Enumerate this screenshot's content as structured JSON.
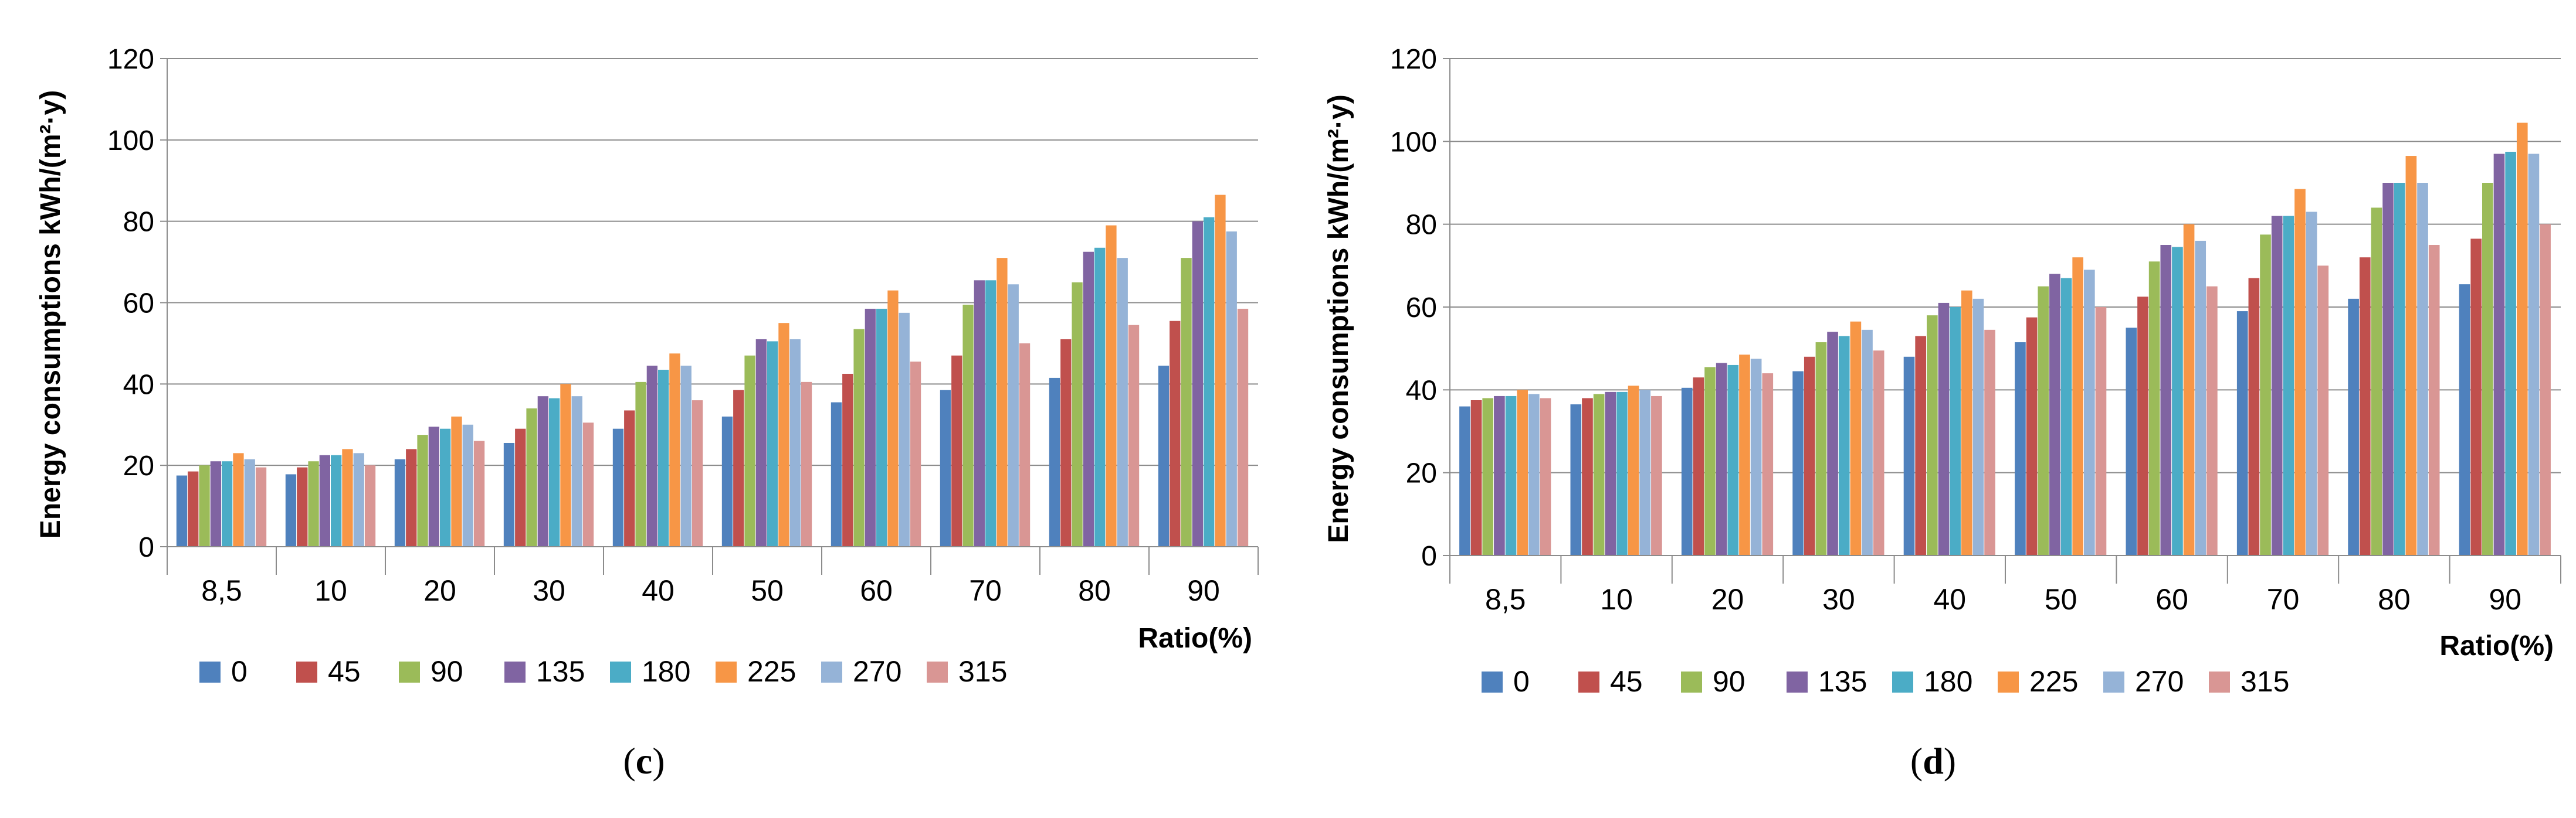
{
  "legend_colors": [
    "#4F81BD",
    "#C0504D",
    "#9BBB59",
    "#8064A2",
    "#4BACC6",
    "#F79646",
    "#95B3D7",
    "#D99694"
  ],
  "chart_data": [
    {
      "type": "bar",
      "panel_label": "c",
      "ylabel": "Energy consumptions  kWh/(m²·y)",
      "xlabel": "Ratio(%)",
      "ylim": [
        0,
        120
      ],
      "yticks": [
        "0",
        "20",
        "40",
        "60",
        "80",
        "100",
        "120"
      ],
      "grid": true,
      "legend_position": "bottom",
      "categories": [
        "8,5",
        "10",
        "20",
        "30",
        "40",
        "50",
        "60",
        "70",
        "80",
        "90"
      ],
      "series": [
        {
          "name": "0",
          "values": [
            17.5,
            17.8,
            21.5,
            25.5,
            29,
            32,
            35.5,
            38.5,
            41.5,
            44.5
          ]
        },
        {
          "name": "45",
          "values": [
            18.5,
            19.5,
            24,
            29,
            33.5,
            38.5,
            42.5,
            47,
            51,
            55.5
          ]
        },
        {
          "name": "90",
          "values": [
            20,
            21,
            27.5,
            34,
            40.5,
            47,
            53.5,
            59.5,
            65,
            71
          ]
        },
        {
          "name": "135",
          "values": [
            21,
            22.5,
            29.5,
            37,
            44.5,
            51,
            58.5,
            65.5,
            72.5,
            80
          ]
        },
        {
          "name": "180",
          "values": [
            21,
            22.5,
            29,
            36.5,
            43.5,
            50.5,
            58.5,
            65.5,
            73.5,
            81
          ]
        },
        {
          "name": "225",
          "values": [
            23,
            24,
            32,
            40,
            47.5,
            55,
            63,
            71,
            79,
            86.5
          ]
        },
        {
          "name": "270",
          "values": [
            21.5,
            23,
            30,
            37,
            44.5,
            51,
            57.5,
            64.5,
            71,
            77.5
          ]
        },
        {
          "name": "315",
          "values": [
            19.5,
            20,
            26,
            30.5,
            36,
            40.5,
            45.5,
            50,
            54.5,
            58.5
          ]
        }
      ]
    },
    {
      "type": "bar",
      "panel_label": "d",
      "ylabel": "Energy consumptions  kWh/(m²·y)",
      "xlabel": "Ratio(%)",
      "ylim": [
        0,
        120
      ],
      "yticks": [
        "0",
        "20",
        "40",
        "60",
        "80",
        "100",
        "120"
      ],
      "grid": true,
      "legend_position": "bottom",
      "categories": [
        "8,5",
        "10",
        "20",
        "30",
        "40",
        "50",
        "60",
        "70",
        "80",
        "90"
      ],
      "series": [
        {
          "name": "0",
          "values": [
            36,
            36.5,
            40.5,
            44.5,
            48,
            51.5,
            55,
            59,
            62,
            65.5
          ]
        },
        {
          "name": "45",
          "values": [
            37.5,
            38,
            43,
            48,
            53,
            57.5,
            62.5,
            67,
            72,
            76.5
          ]
        },
        {
          "name": "90",
          "values": [
            38,
            39,
            45.5,
            51.5,
            58,
            65,
            71,
            77.5,
            84,
            90
          ]
        },
        {
          "name": "135",
          "values": [
            38.5,
            39.5,
            46.5,
            54,
            61,
            68,
            75,
            82,
            90,
            97
          ]
        },
        {
          "name": "180",
          "values": [
            38.5,
            39.5,
            46,
            53,
            60,
            67,
            74.5,
            82,
            90,
            97.5
          ]
        },
        {
          "name": "225",
          "values": [
            40,
            41,
            48.5,
            56.5,
            64,
            72,
            80,
            88.5,
            96.5,
            104.5
          ]
        },
        {
          "name": "270",
          "values": [
            39,
            40,
            47.5,
            54.5,
            62,
            69,
            76,
            83,
            90,
            97
          ]
        },
        {
          "name": "315",
          "values": [
            38,
            38.5,
            44,
            49.5,
            54.5,
            60,
            65,
            70,
            75,
            80
          ]
        }
      ]
    }
  ]
}
